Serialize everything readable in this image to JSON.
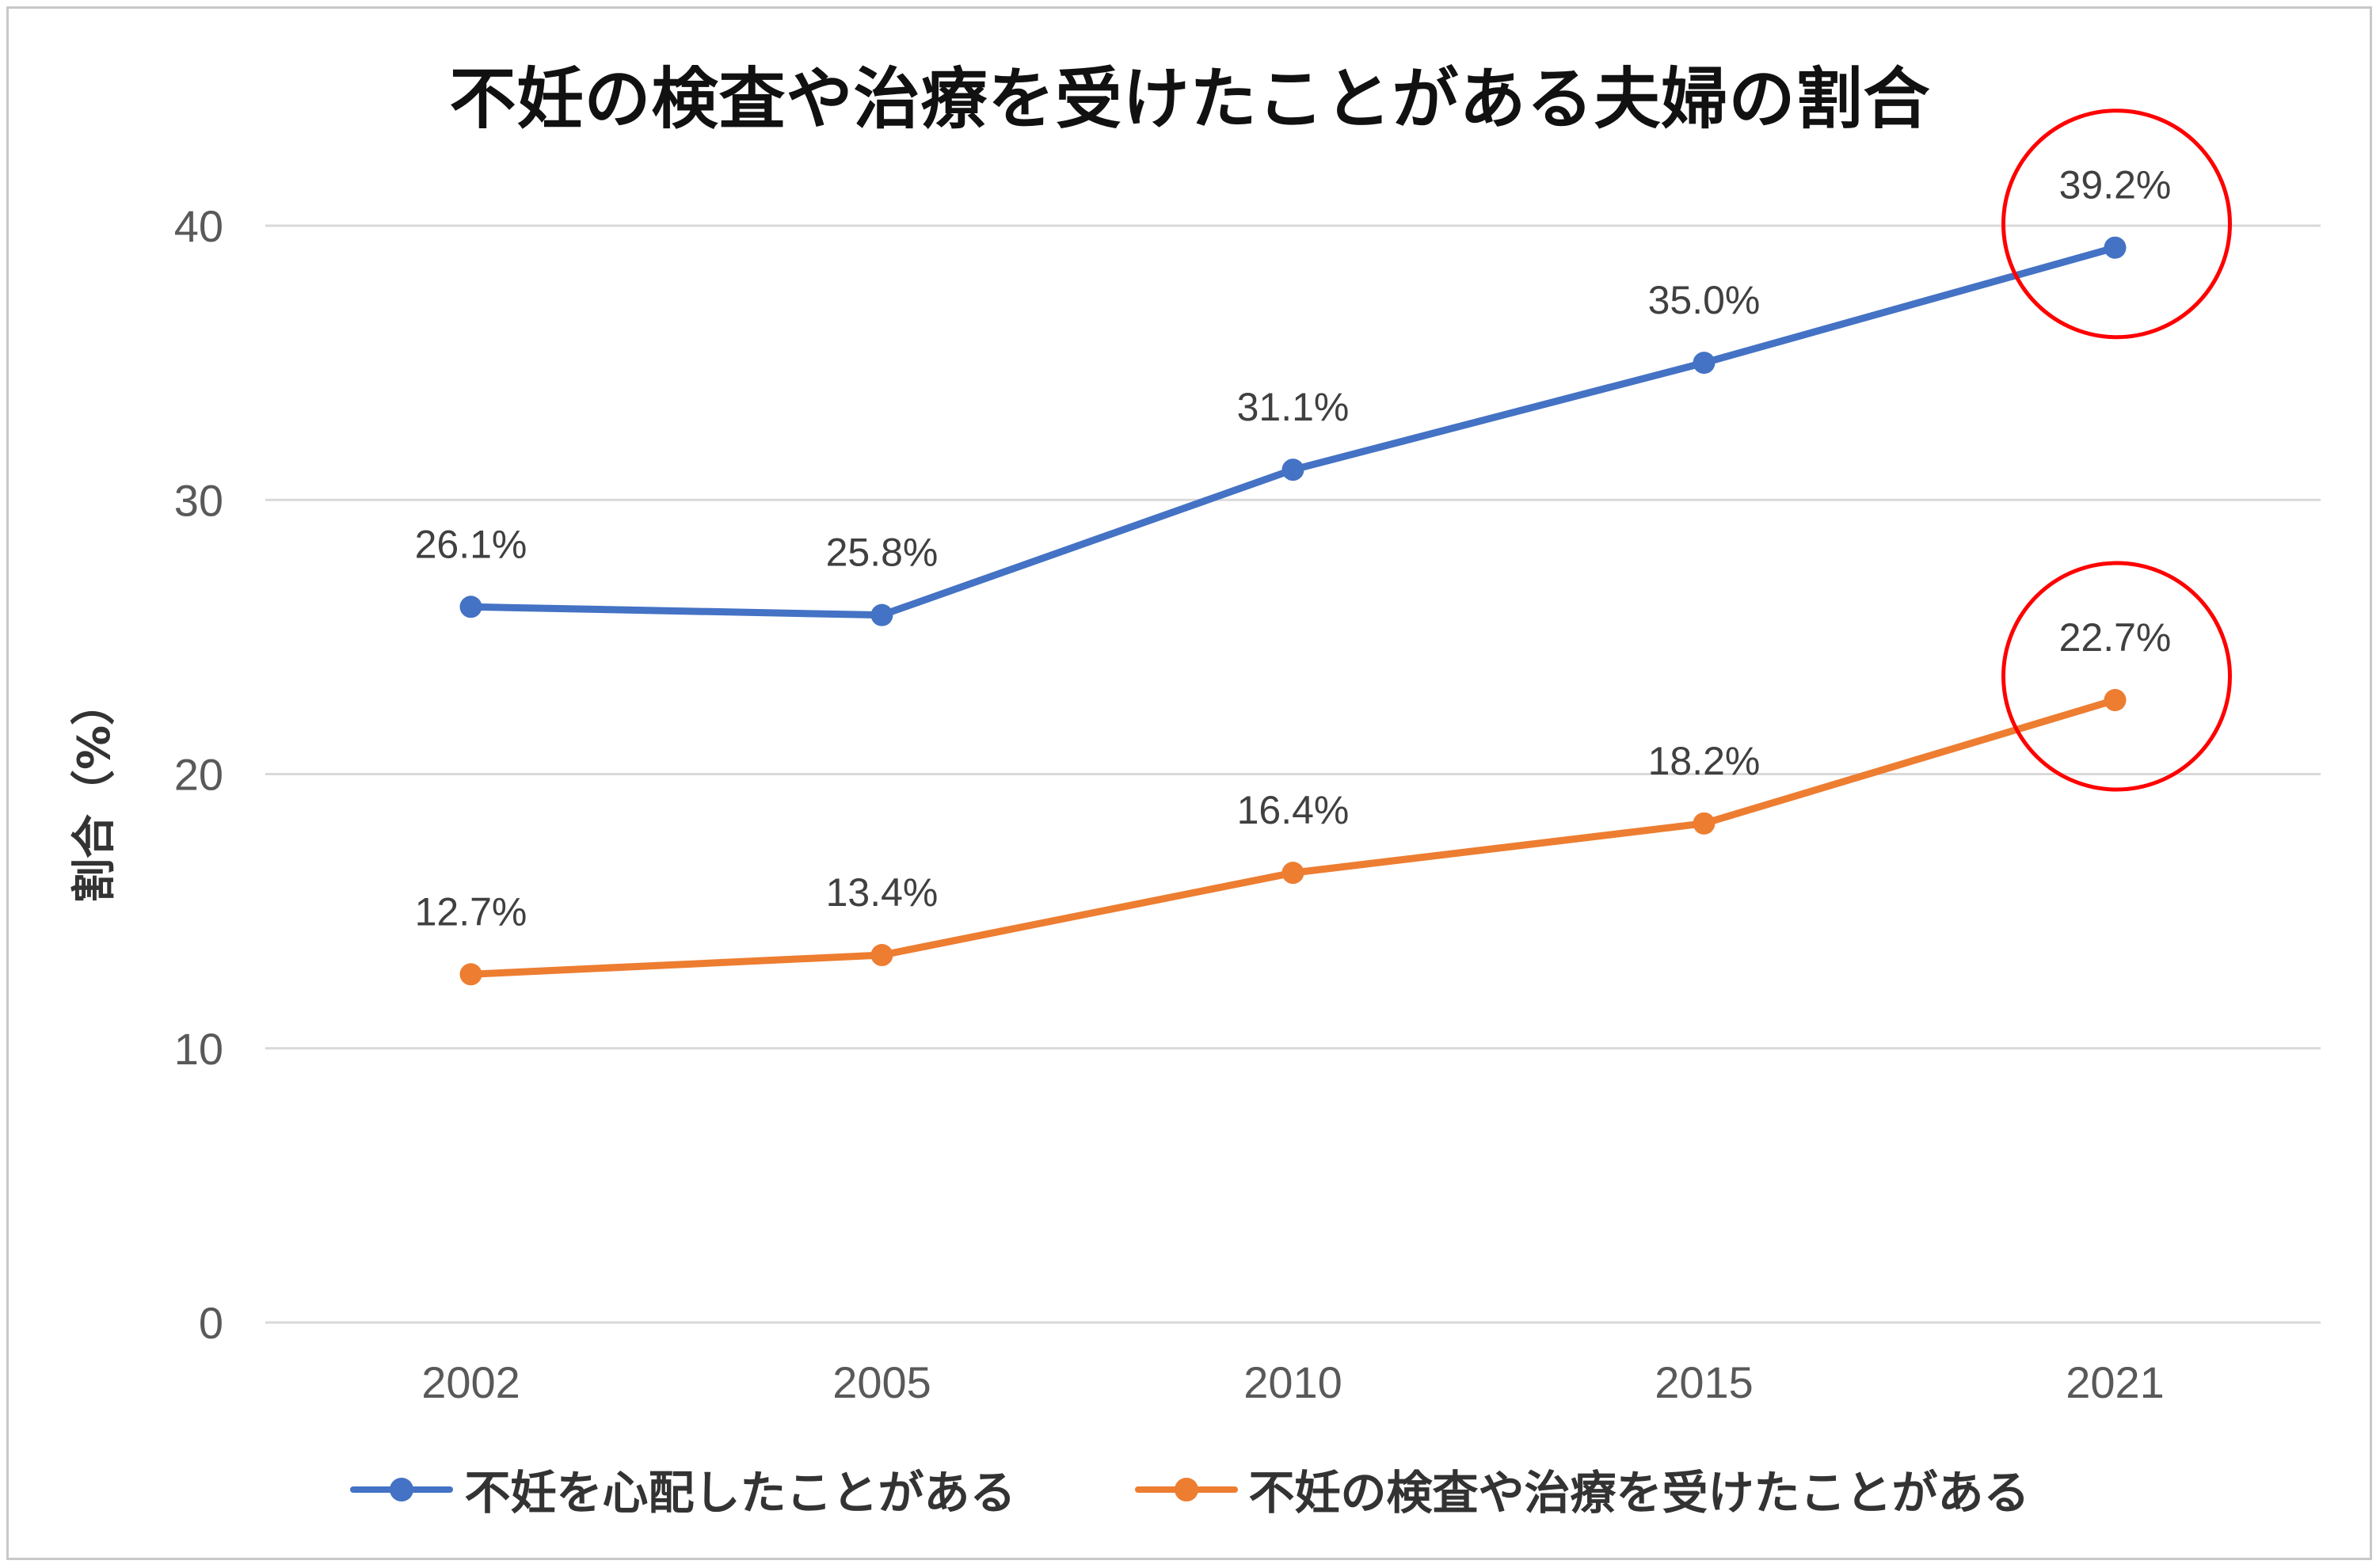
{
  "chart_data": {
    "type": "line",
    "title": "不妊の検査や治療を受けたことがある夫婦の割合",
    "ylabel": "割合（%）",
    "xlabel": "",
    "categories": [
      "2002",
      "2005",
      "2010",
      "2015",
      "2021"
    ],
    "ylim": [
      0,
      40
    ],
    "yticks": [
      0,
      10,
      20,
      30,
      40
    ],
    "grid": true,
    "legend_position": "bottom",
    "series": [
      {
        "name": "不妊を心配したことがある",
        "color": "#4472C4",
        "values": [
          26.1,
          25.8,
          31.1,
          35.0,
          39.2
        ],
        "labels": [
          "26.1%",
          "25.8%",
          "31.1%",
          "35.0%",
          "39.2%"
        ]
      },
      {
        "name": "不妊の検査や治療を受けたことがある",
        "color": "#ED7D31",
        "values": [
          12.7,
          13.4,
          16.4,
          18.2,
          22.7
        ],
        "labels": [
          "12.7%",
          "13.4%",
          "16.4%",
          "18.2%",
          "22.7%"
        ]
      }
    ],
    "annotations": [
      {
        "type": "circle",
        "color": "#FF0000",
        "series": 0,
        "category": "2021"
      },
      {
        "type": "circle",
        "color": "#FF0000",
        "series": 1,
        "category": "2021"
      }
    ]
  }
}
